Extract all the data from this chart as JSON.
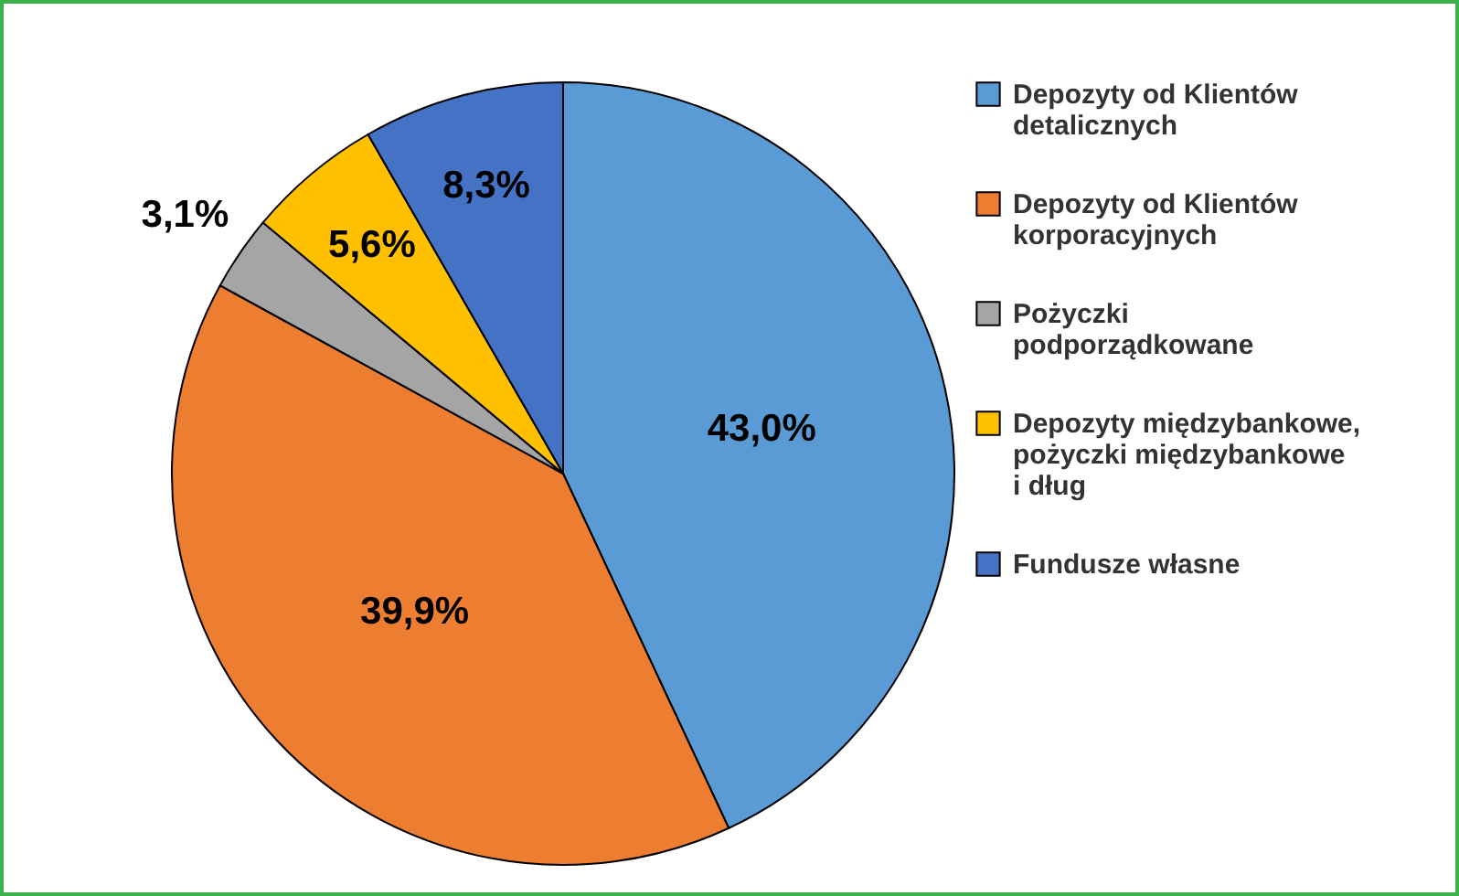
{
  "chart_data": {
    "type": "pie",
    "categories": [
      "Depozyty od Klientów detalicznych",
      "Depozyty od Klientów korporacyjnych",
      "Pożyczki podporządkowane",
      "Depozyty międzybankowe, pożyczki międzybankowe i dług",
      "Fundusze własne"
    ],
    "values": [
      43.0,
      39.9,
      3.1,
      5.6,
      8.3
    ],
    "colors": [
      "#5b9bd5",
      "#ed7d31",
      "#a5a5a5",
      "#ffc000",
      "#4472c4"
    ],
    "value_labels": [
      "43,0%",
      "39,9%",
      "3,1%",
      "5,6%",
      "8,3%"
    ],
    "legend": "right"
  }
}
